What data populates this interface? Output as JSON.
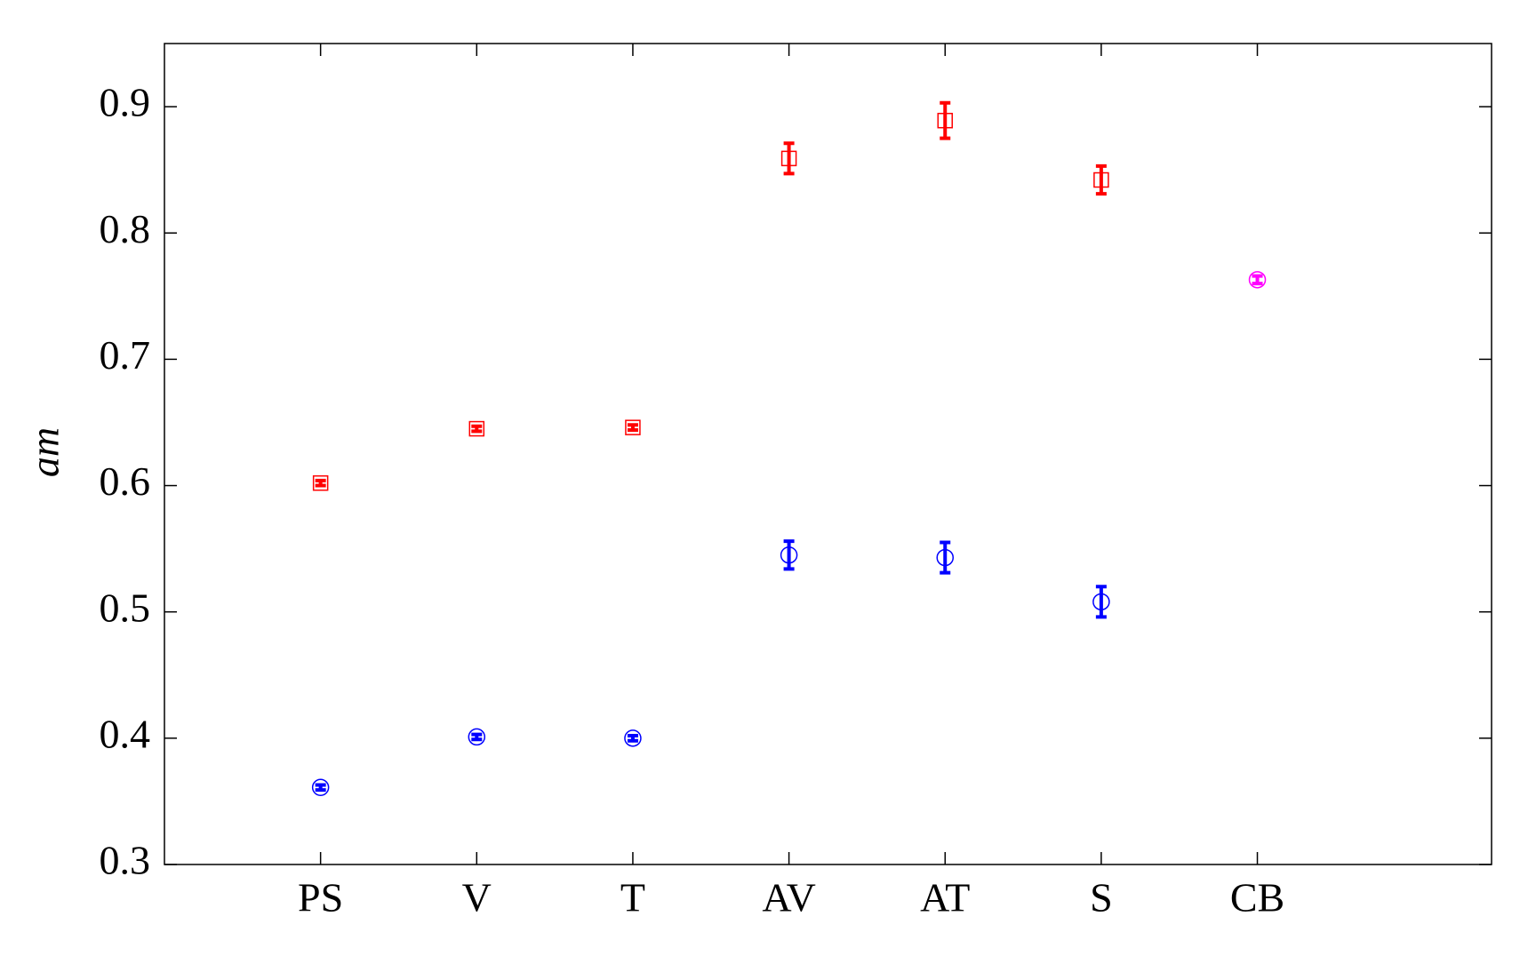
{
  "chart_data": {
    "type": "errorbar",
    "y_label": "am",
    "categories": [
      "PS",
      "V",
      "T",
      "AV",
      "AT",
      "S",
      "CB"
    ],
    "series": [
      {
        "color": "#ff0000",
        "marker": "square",
        "values": [
          0.602,
          0.645,
          0.646,
          0.859,
          0.889,
          0.842,
          null
        ],
        "errors": [
          0.002,
          0.002,
          0.002,
          0.012,
          0.014,
          0.011,
          null
        ]
      },
      {
        "color": "#0000ff",
        "marker": "circle",
        "values": [
          0.361,
          0.401,
          0.4,
          0.545,
          0.543,
          0.508,
          null
        ],
        "errors": [
          0.002,
          0.002,
          0.002,
          0.011,
          0.012,
          0.012,
          null
        ]
      },
      {
        "color": "#ff00ff",
        "marker": "circle",
        "values": [
          null,
          null,
          null,
          null,
          null,
          null,
          0.763
        ],
        "errors": [
          null,
          null,
          null,
          null,
          null,
          null,
          0.003
        ]
      }
    ],
    "ylim": [
      0.3,
      0.95
    ],
    "yticks": [
      {
        "value": 0.3,
        "label": "0.3"
      },
      {
        "value": 0.4,
        "label": "0.4"
      },
      {
        "value": 0.5,
        "label": "0.5"
      },
      {
        "value": 0.6,
        "label": "0.6"
      },
      {
        "value": 0.7,
        "label": "0.7"
      },
      {
        "value": 0.8,
        "label": "0.8"
      },
      {
        "value": 0.9,
        "label": "0.9"
      }
    ],
    "grid": false
  }
}
